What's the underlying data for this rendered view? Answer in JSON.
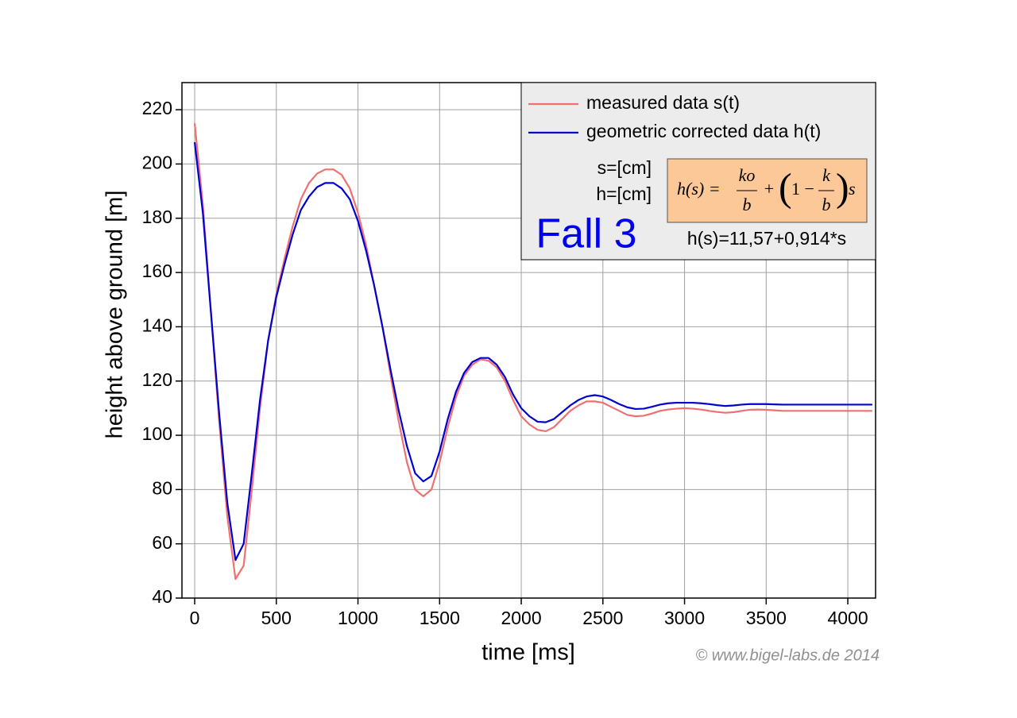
{
  "chart_data": {
    "type": "line",
    "x_label": "time [ms]",
    "y_label": "height above ground [m]",
    "xlim": [
      -78,
      4170
    ],
    "ylim": [
      40,
      230
    ],
    "xticks": [
      0,
      500,
      1000,
      1500,
      2000,
      2500,
      3000,
      3500,
      4000
    ],
    "yticks": [
      40,
      60,
      80,
      100,
      120,
      140,
      160,
      180,
      200,
      220
    ],
    "grid": true,
    "legend": "top-right",
    "x": [
      0,
      50,
      100,
      150,
      200,
      250,
      300,
      350,
      400,
      450,
      500,
      550,
      600,
      650,
      700,
      750,
      800,
      850,
      900,
      950,
      1000,
      1050,
      1100,
      1150,
      1200,
      1250,
      1300,
      1350,
      1400,
      1450,
      1500,
      1550,
      1600,
      1650,
      1700,
      1750,
      1800,
      1850,
      1900,
      1950,
      2000,
      2050,
      2100,
      2150,
      2200,
      2250,
      2300,
      2350,
      2400,
      2450,
      2500,
      2550,
      2600,
      2650,
      2700,
      2750,
      2800,
      2850,
      2900,
      2950,
      3000,
      3050,
      3100,
      3150,
      3200,
      3250,
      3300,
      3350,
      3400,
      3450,
      3500,
      3550,
      3600,
      3650,
      3700,
      3750,
      3800,
      3850,
      3900,
      3950,
      4000,
      4050,
      4100,
      4150
    ],
    "series": [
      {
        "name": "measured data s(t)",
        "color": "#f07070",
        "values": [
          215,
          185,
          145,
          105,
          70,
          47,
          52,
          80,
          110,
          135,
          152,
          165,
          177,
          187,
          193,
          196.5,
          198,
          198,
          196,
          191,
          182,
          170,
          155,
          140,
          122,
          105,
          90,
          80,
          77.5,
          80,
          90,
          103,
          114,
          122,
          126,
          128,
          127.5,
          125,
          120,
          113,
          107,
          104,
          102,
          101.5,
          103,
          106,
          109,
          111,
          112.5,
          112.5,
          112,
          110.5,
          109,
          107.5,
          107,
          107.2,
          108,
          109,
          109.5,
          109.8,
          110,
          109.8,
          109.5,
          109,
          108.6,
          108.3,
          108.5,
          109,
          109.4,
          109.5,
          109.4,
          109.2,
          109,
          109,
          109,
          109,
          109,
          109,
          109,
          109,
          109,
          109,
          109,
          109
        ]
      },
      {
        "name": "geometric corrected data h(t)",
        "color": "#0000d0",
        "values": [
          208,
          182,
          145,
          108,
          75,
          54,
          60,
          86,
          113,
          135,
          151,
          163,
          174,
          183,
          188,
          191.5,
          193,
          193,
          191,
          187,
          179,
          168,
          155,
          140,
          124,
          109,
          96,
          86,
          83,
          85,
          94,
          106,
          116,
          123,
          127,
          128.5,
          128.5,
          126,
          121.5,
          115,
          110,
          107,
          105,
          104.8,
          106,
          108.5,
          111,
          113,
          114.3,
          114.8,
          114.3,
          113,
          111.5,
          110.3,
          109.7,
          109.8,
          110.5,
          111.3,
          111.8,
          112,
          112,
          112,
          111.8,
          111.5,
          111.1,
          110.8,
          111,
          111.3,
          111.5,
          111.5,
          111.5,
          111.4,
          111.3,
          111.3,
          111.3,
          111.3,
          111.3,
          111.3,
          111.3,
          111.3,
          111.3,
          111.3,
          111.3,
          111.3
        ]
      }
    ],
    "annotations": {
      "units_s": "s=[cm]",
      "units_h": "h=[cm]",
      "case": "Fall 3",
      "fit": "h(s)=11,57+0,914*s",
      "copyright": "© www.bigel-labs.de 2014",
      "formula": {
        "lhs": "h(s) =",
        "num1": "ko",
        "den1": "b",
        "plus": "+",
        "open": "(",
        "one": "1 −",
        "num2": "k",
        "den2": "b",
        "close": ")",
        "tail": "s"
      }
    }
  }
}
